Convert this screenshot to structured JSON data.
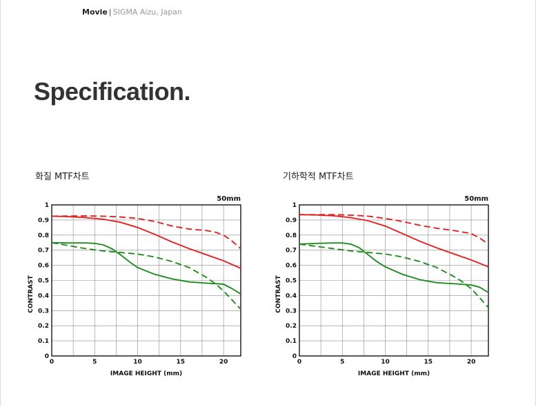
{
  "breadcrumb": {
    "section": "Movie",
    "separator": "|",
    "subtitle": "SIGMA Aizu, Japan"
  },
  "page_title": "Specification.",
  "colors": {
    "red": "#e8201f",
    "green": "#1e8c1e",
    "grid": "#8a8a8a"
  },
  "chart_data": [
    {
      "type": "line",
      "title": "화질 MTF차트",
      "focal_label": "50mm",
      "xlabel": "IMAGE HEIGHT (mm)",
      "ylabel": "CONTRAST",
      "xlim": [
        0,
        22
      ],
      "ylim": [
        0,
        1
      ],
      "x_ticks": [
        "0",
        "5",
        "10",
        "15",
        "20"
      ],
      "y_ticks": [
        "0",
        "0.1",
        "0.2",
        "0.3",
        "0.4",
        "0.5",
        "0.6",
        "0.7",
        "0.8",
        "0.9",
        "1"
      ],
      "grid": true,
      "series": [
        {
          "color": "#e8201f",
          "dash": false,
          "x": [
            0,
            2,
            4,
            6,
            8,
            10,
            12,
            14,
            16,
            18,
            20,
            22
          ],
          "y": [
            0.925,
            0.922,
            0.915,
            0.905,
            0.885,
            0.85,
            0.805,
            0.755,
            0.71,
            0.67,
            0.63,
            0.58
          ]
        },
        {
          "color": "#e8201f",
          "dash": true,
          "x": [
            0,
            2,
            4,
            6,
            8,
            10,
            12,
            14,
            16,
            18,
            19,
            20,
            21,
            22
          ],
          "y": [
            0.925,
            0.926,
            0.927,
            0.925,
            0.92,
            0.91,
            0.89,
            0.86,
            0.84,
            0.83,
            0.82,
            0.8,
            0.76,
            0.71
          ]
        },
        {
          "color": "#1e8c1e",
          "dash": false,
          "x": [
            0,
            2,
            4,
            5,
            6,
            7,
            8,
            9,
            10,
            12,
            14,
            16,
            18,
            20,
            21,
            22
          ],
          "y": [
            0.75,
            0.748,
            0.748,
            0.745,
            0.735,
            0.71,
            0.67,
            0.625,
            0.585,
            0.54,
            0.51,
            0.49,
            0.482,
            0.475,
            0.445,
            0.41
          ]
        },
        {
          "color": "#1e8c1e",
          "dash": true,
          "x": [
            0,
            2,
            4,
            6,
            8,
            10,
            12,
            14,
            16,
            18,
            19,
            20,
            21,
            22
          ],
          "y": [
            0.75,
            0.73,
            0.71,
            0.695,
            0.685,
            0.675,
            0.655,
            0.625,
            0.585,
            0.52,
            0.48,
            0.43,
            0.37,
            0.31
          ]
        }
      ]
    },
    {
      "type": "line",
      "title": "기하학적 MTF차트",
      "focal_label": "50mm",
      "xlabel": "IMAGE HEIGHT (mm)",
      "ylabel": "CONTRAST",
      "xlim": [
        0,
        22
      ],
      "ylim": [
        0,
        1
      ],
      "x_ticks": [
        "0",
        "5",
        "10",
        "15",
        "20"
      ],
      "y_ticks": [
        "0",
        "0.1",
        "0.2",
        "0.3",
        "0.4",
        "0.5",
        "0.6",
        "0.7",
        "0.8",
        "0.9",
        "1"
      ],
      "grid": true,
      "series": [
        {
          "color": "#e8201f",
          "dash": false,
          "x": [
            0,
            2,
            4,
            6,
            8,
            10,
            12,
            14,
            16,
            18,
            20,
            22
          ],
          "y": [
            0.935,
            0.933,
            0.928,
            0.915,
            0.895,
            0.86,
            0.81,
            0.76,
            0.715,
            0.675,
            0.635,
            0.59
          ]
        },
        {
          "color": "#e8201f",
          "dash": true,
          "x": [
            0,
            2,
            4,
            6,
            8,
            10,
            12,
            14,
            16,
            18,
            19,
            20,
            21,
            22
          ],
          "y": [
            0.935,
            0.935,
            0.935,
            0.932,
            0.925,
            0.91,
            0.89,
            0.865,
            0.845,
            0.83,
            0.82,
            0.81,
            0.78,
            0.74
          ]
        },
        {
          "color": "#1e8c1e",
          "dash": false,
          "x": [
            0,
            2,
            4,
            5,
            6,
            7,
            8,
            9,
            10,
            12,
            14,
            16,
            18,
            20,
            21,
            22
          ],
          "y": [
            0.74,
            0.745,
            0.748,
            0.748,
            0.74,
            0.715,
            0.67,
            0.625,
            0.59,
            0.54,
            0.505,
            0.485,
            0.478,
            0.47,
            0.455,
            0.42
          ]
        },
        {
          "color": "#1e8c1e",
          "dash": true,
          "x": [
            0,
            2,
            4,
            6,
            8,
            10,
            12,
            14,
            16,
            18,
            19,
            20,
            21,
            22
          ],
          "y": [
            0.74,
            0.725,
            0.71,
            0.695,
            0.685,
            0.675,
            0.655,
            0.625,
            0.585,
            0.525,
            0.49,
            0.445,
            0.385,
            0.32
          ]
        }
      ]
    }
  ]
}
